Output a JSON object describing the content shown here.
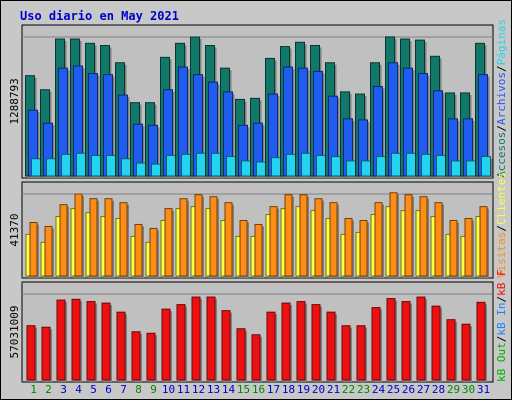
{
  "chart_data": {
    "type": "bar",
    "title": "Uso diario en May 2021",
    "colors": {
      "frame": "#c8c8c8",
      "panel": "#c0c0c0",
      "title": "#0000cc",
      "weekday_label": "#0000cc",
      "weekend_label": "#008800",
      "accesos": "#11786a",
      "archivos": "#1f5cf0",
      "paginas": "#22d4f0",
      "visitas": "#ffff40",
      "clientes": "#ff8c14",
      "kb_out": "#00b000",
      "kb_in": "#2080ff",
      "kb_f": "#ee1010"
    },
    "days": [
      "1",
      "2",
      "3",
      "4",
      "5",
      "6",
      "7",
      "8",
      "9",
      "10",
      "11",
      "12",
      "13",
      "14",
      "15",
      "16",
      "17",
      "18",
      "19",
      "20",
      "21",
      "22",
      "23",
      "24",
      "25",
      "26",
      "27",
      "28",
      "29",
      "30",
      "31"
    ],
    "weekend_days": [
      "1",
      "2",
      "8",
      "9",
      "15",
      "16",
      "22",
      "23",
      "29",
      "30"
    ],
    "legend_top": [
      "Accesos",
      "/",
      "Archivos",
      "/",
      "Páginas"
    ],
    "legend_middle": [
      "Visitas",
      "/",
      "Clientes"
    ],
    "legend_bottom": [
      "kB Out",
      "/",
      "kB In",
      "/",
      "kB F"
    ],
    "panels": [
      {
        "id": "hits",
        "max_label": "1288793",
        "series": [
          {
            "name": "Accesos",
            "values": [
              930000,
              800000,
              1270000,
              1270000,
              1230000,
              1210000,
              1050000,
              680000,
              680000,
              1100000,
              1230000,
              1288793,
              1210000,
              1000000,
              710000,
              720000,
              1090000,
              1200000,
              1240000,
              1210000,
              1050000,
              780000,
              760000,
              1050000,
              1290000,
              1270000,
              1260000,
              1110000,
              770000,
              770000,
              1230000
            ]
          },
          {
            "name": "Archivos",
            "values": [
              610000,
              490000,
              1000000,
              1020000,
              950000,
              940000,
              750000,
              480000,
              470000,
              800000,
              1010000,
              940000,
              870000,
              780000,
              470000,
              490000,
              760000,
              1010000,
              1000000,
              970000,
              740000,
              530000,
              520000,
              830000,
              1050000,
              1000000,
              950000,
              790000,
              530000,
              530000,
              940000
            ]
          },
          {
            "name": "Páginas",
            "values": [
              160000,
              160000,
              200000,
              210000,
              190000,
              190000,
              160000,
              120000,
              110000,
              190000,
              200000,
              210000,
              210000,
              180000,
              140000,
              130000,
              170000,
              200000,
              210000,
              190000,
              180000,
              140000,
              140000,
              180000,
              210000,
              210000,
              200000,
              190000,
              140000,
              140000,
              180000
            ]
          }
        ]
      },
      {
        "id": "visits",
        "max_label": "41370",
        "series": [
          {
            "name": "Visitas",
            "values": [
              21000,
              17000,
              30000,
              34000,
              32000,
              30000,
              29000,
              20000,
              17000,
              28000,
              34000,
              35000,
              34000,
              28000,
              20000,
              20000,
              31000,
              34000,
              35000,
              33000,
              29000,
              21000,
              22000,
              31000,
              35000,
              33000,
              33000,
              30000,
              21000,
              20000,
              30000
            ]
          },
          {
            "name": "Clientes",
            "values": [
              27000,
              25000,
              36000,
              41370,
              39000,
              39000,
              37000,
              26000,
              24000,
              34000,
              39000,
              41000,
              40000,
              37000,
              28000,
              26000,
              35000,
              41000,
              41000,
              39000,
              37000,
              29000,
              28000,
              37000,
              42000,
              41000,
              40000,
              37000,
              28000,
              29000,
              35000
            ]
          }
        ]
      },
      {
        "id": "kbytes",
        "max_label": "57031009",
        "series": [
          {
            "name": "kB F",
            "values": [
              36000000,
              35000000,
              53000000,
              53500000,
              52000000,
              51000000,
              45000000,
              32000000,
              31000000,
              47000000,
              50000000,
              55000000,
              55000000,
              46000000,
              34000000,
              30000000,
              45000000,
              51000000,
              52000000,
              50000000,
              45000000,
              36000000,
              36000000,
              48000000,
              54000000,
              52000000,
              55000000,
              49000000,
              40000000,
              37000000,
              51500000
            ]
          }
        ]
      }
    ]
  }
}
